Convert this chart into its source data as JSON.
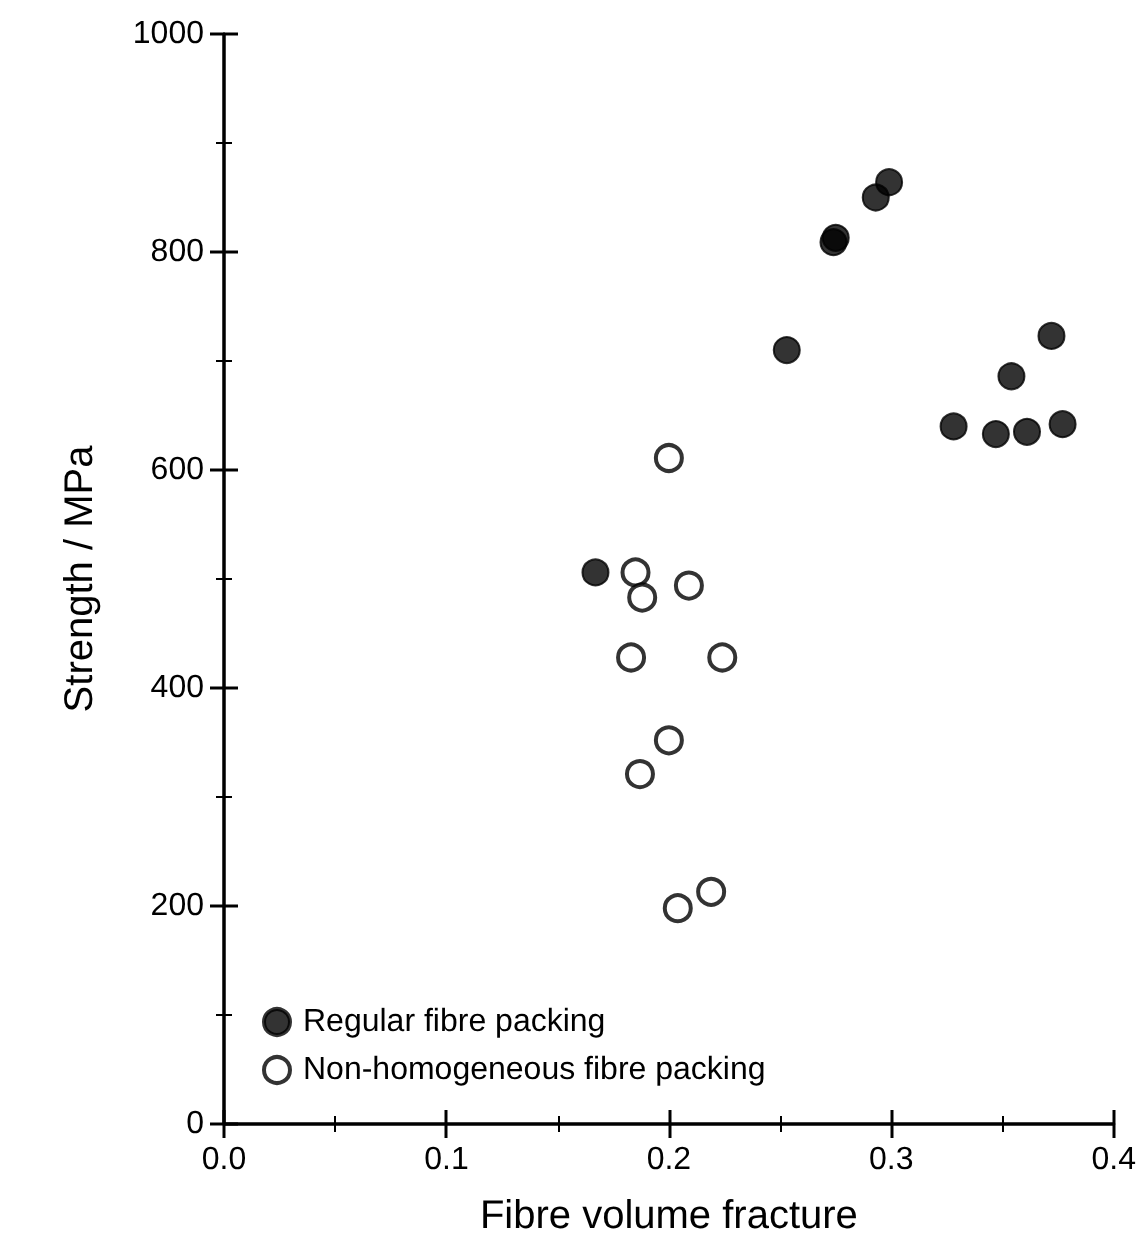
{
  "chart_data": {
    "type": "scatter",
    "xlabel": "Fibre volume fracture",
    "ylabel": "Strength / MPa",
    "xlim": [
      0,
      0.4
    ],
    "xticks": [
      {
        "value": 0,
        "label": "0.0"
      },
      0.1,
      0.2,
      0.3,
      0.4
    ],
    "ylim": [
      0,
      1000
    ],
    "yticks": [
      0,
      200,
      400,
      600,
      800,
      1000
    ],
    "grid": false,
    "legend": "bottom left",
    "series": [
      {
        "name": "Regular fibre packing",
        "color": "#000000",
        "marker": "circle",
        "x": [
          0.167,
          0.253,
          0.274,
          0.275,
          0.293,
          0.299,
          0.328,
          0.347,
          0.354,
          0.361,
          0.372,
          0.377
        ],
        "values": [
          506,
          710,
          809,
          813,
          850,
          864,
          640,
          633,
          686,
          635,
          723,
          642
        ]
      },
      {
        "name": "Non-homogeneous fibre packing",
        "color": "#000000",
        "marker": "open circle",
        "x": [
          0.2,
          0.185,
          0.188,
          0.209,
          0.183,
          0.224,
          0.2,
          0.187,
          0.219,
          0.204
        ],
        "values": [
          611,
          506,
          483,
          494,
          428,
          428,
          352,
          321,
          213,
          198
        ]
      }
    ]
  }
}
